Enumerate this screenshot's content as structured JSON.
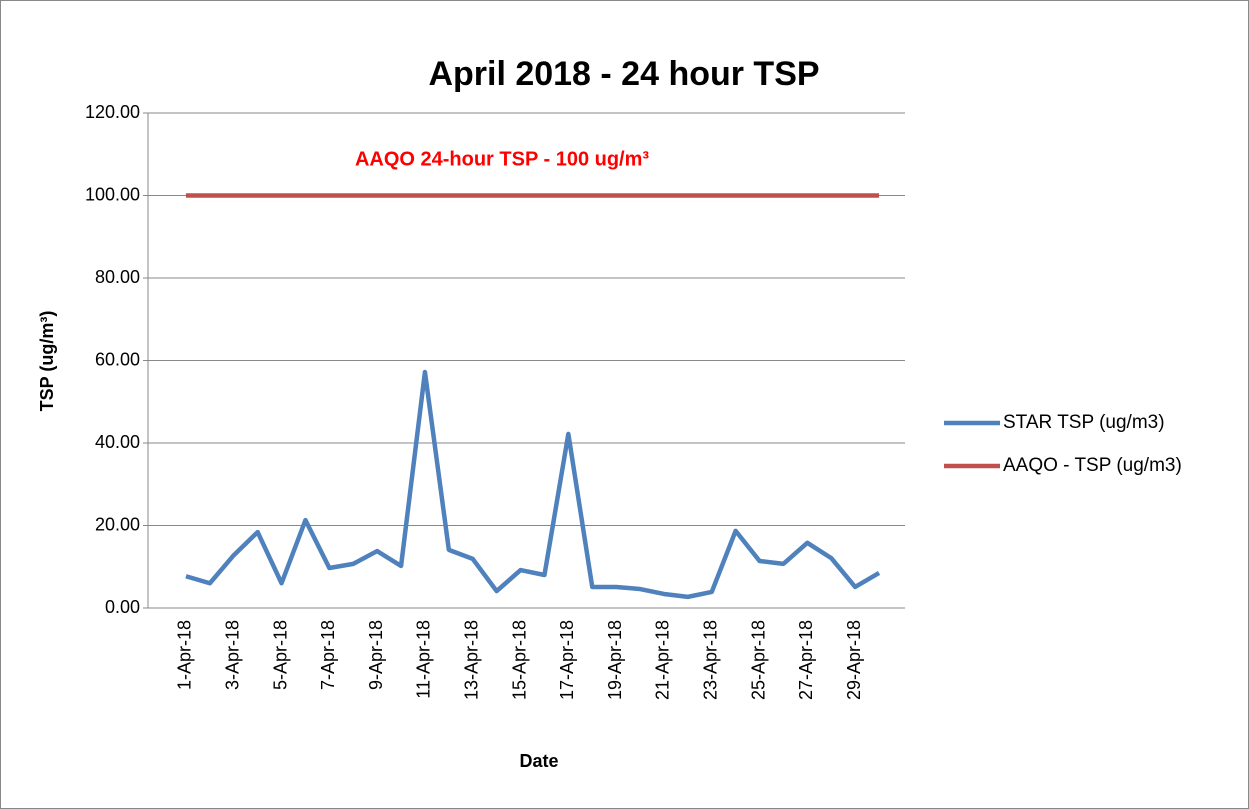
{
  "chart_data": {
    "type": "line",
    "title": "April 2018 - 24 hour TSP",
    "annotation": "AAQO 24-hour TSP - 100 ug/m³",
    "x_label": "Date",
    "y_label": "TSP (ug/m³)",
    "categories": [
      "1-Apr-18",
      null,
      "3-Apr-18",
      null,
      "5-Apr-18",
      null,
      "7-Apr-18",
      null,
      "9-Apr-18",
      null,
      "11-Apr-18",
      null,
      "13-Apr-18",
      null,
      "15-Apr-18",
      null,
      "17-Apr-18",
      null,
      "19-Apr-18",
      null,
      "21-Apr-18",
      null,
      "23-Apr-18",
      null,
      "25-Apr-18",
      null,
      "27-Apr-18",
      null,
      "29-Apr-18",
      null
    ],
    "series": [
      {
        "name": "STAR TSP (ug/m3)",
        "color": "#4f81bd",
        "values": [
          7.7,
          6.0,
          12.8,
          18.4,
          6.0,
          21.3,
          9.7,
          10.7,
          13.8,
          10.2,
          57.2,
          14.1,
          11.9,
          4.1,
          9.2,
          8.0,
          42.2,
          5.1,
          5.1,
          4.6,
          3.4,
          2.7,
          3.9,
          18.7,
          11.4,
          10.7,
          15.8,
          12.1,
          5.1,
          8.5
        ]
      },
      {
        "name": "AAQO - TSP (ug/m3)",
        "color": "#c0504d",
        "values": [
          100,
          100,
          100,
          100,
          100,
          100,
          100,
          100,
          100,
          100,
          100,
          100,
          100,
          100,
          100,
          100,
          100,
          100,
          100,
          100,
          100,
          100,
          100,
          100,
          100,
          100,
          100,
          100,
          100,
          100
        ]
      }
    ],
    "ylim": [
      0,
      120
    ],
    "yticks": [
      {
        "value": 0,
        "label": "0.00"
      },
      {
        "value": 20,
        "label": "20.00"
      },
      {
        "value": 40,
        "label": "40.00"
      },
      {
        "value": 60,
        "label": "60.00"
      },
      {
        "value": 80,
        "label": "80.00"
      },
      {
        "value": 100,
        "label": "100.00"
      },
      {
        "value": 120,
        "label": "120.00"
      }
    ],
    "grid": true,
    "legend": "right"
  }
}
